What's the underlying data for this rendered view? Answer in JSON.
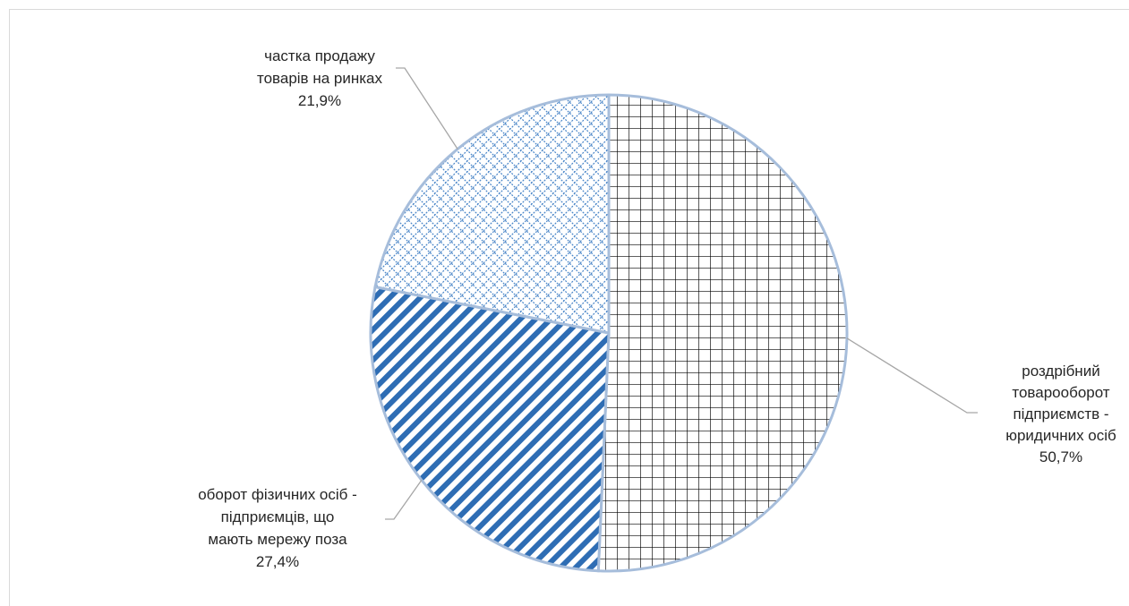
{
  "chart_data": {
    "type": "pie",
    "title": "",
    "slices": [
      {
        "lines": [
          "роздрібний",
          "товарооборот",
          "підприємств -",
          "юридичних осіб"
        ],
        "value_label": "50,7%",
        "value": 50.7,
        "pattern": "grid",
        "color": "#000000"
      },
      {
        "lines": [
          "оборот фізичних осіб -",
          "підприємців, що",
          "мають мережу поза"
        ],
        "value_label": "27,4%",
        "value": 27.4,
        "pattern": "diagonal-stripes",
        "color": "#2e6db4"
      },
      {
        "lines": [
          "частка продажу",
          "товарів на ринках"
        ],
        "value_label": "21,9%",
        "value": 21.9,
        "pattern": "diamond-lattice",
        "color": "#2e6db4"
      }
    ],
    "start_angle_deg": 0,
    "direction": "clockwise",
    "border_color": "#a6bddb",
    "leader_color": "#a6a6a6"
  }
}
